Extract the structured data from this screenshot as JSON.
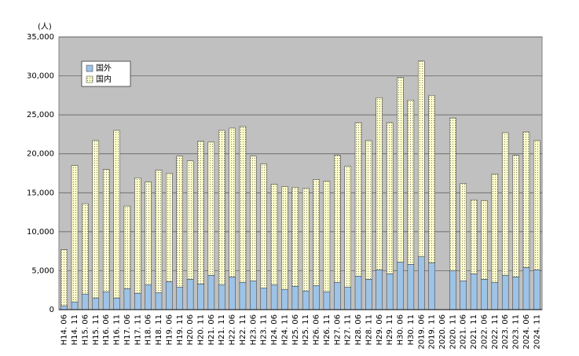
{
  "chart_data": {
    "type": "stacked_bar",
    "y_label": "(人)",
    "legend": "upper left",
    "grid": true,
    "categories": [
      "H14. 06",
      "H14. 11",
      "H15. 06",
      "H15. 11",
      "H16. 06",
      "H16. 11",
      "H17. 06",
      "H17. 11",
      "H18. 06",
      "H18. 11",
      "H19. 06",
      "H19. 11",
      "H20. 06",
      "H20. 11",
      "H21. 06",
      "H21. 11",
      "H22. 06",
      "H22. 11",
      "H23. 06",
      "H23. 11",
      "H24. 06",
      "H24. 11",
      "H25. 06",
      "H25. 11",
      "H26. 06",
      "H26. 11",
      "H27. 06",
      "H27. 11",
      "H28. 06",
      "H28. 11",
      "H29. 06",
      "H29. 11",
      "H30. 06",
      "H30. 11",
      "2019. 06",
      "2019. 11",
      "2020. 06",
      "2020. 11",
      "2021. 06",
      "2021. 11",
      "2022. 06",
      "2022. 11",
      "2023. 06",
      "2023. 11",
      "2024. 06",
      "2024. 11"
    ],
    "series": [
      {
        "name": "国外",
        "color": "#9dc3e6",
        "values": [
          500,
          1000,
          2000,
          1500,
          2300,
          1500,
          2700,
          2100,
          3200,
          2200,
          3600,
          2900,
          3900,
          3300,
          4400,
          3200,
          4200,
          3500,
          3700,
          2800,
          3200,
          2600,
          3000,
          2400,
          3100,
          2300,
          3500,
          2900,
          4300,
          3900,
          5100,
          4600,
          6100,
          5800,
          6800,
          6000,
          null,
          5000,
          3700,
          4600,
          3900,
          3500,
          4400,
          4200,
          5400,
          5100
        ]
      },
      {
        "name": "国内",
        "color": "#ffffcc",
        "values": [
          7200,
          17500,
          11600,
          20200,
          15700,
          21500,
          10600,
          14800,
          13200,
          15700,
          13900,
          16800,
          15200,
          18300,
          17100,
          19800,
          19100,
          20000,
          16000,
          15900,
          12900,
          13200,
          12700,
          13200,
          13600,
          14200,
          16300,
          15500,
          19700,
          17800,
          22100,
          19400,
          23700,
          21100,
          25100,
          21500,
          null,
          19600,
          12500,
          9500,
          10100,
          13900,
          18300,
          15600,
          17400,
          16600
        ]
      }
    ],
    "ylim": [
      0,
      35000
    ],
    "yticks": [
      0,
      {
        "value": 5000,
        "label": "5,000"
      },
      {
        "value": 10000,
        "label": "10,000"
      },
      {
        "value": 15000,
        "label": "15,000"
      },
      {
        "value": 20000,
        "label": "20,000"
      },
      {
        "value": 25000,
        "label": "25,000"
      },
      {
        "value": 30000,
        "label": "30,000"
      },
      {
        "value": 35000,
        "label": "35,000"
      }
    ]
  }
}
